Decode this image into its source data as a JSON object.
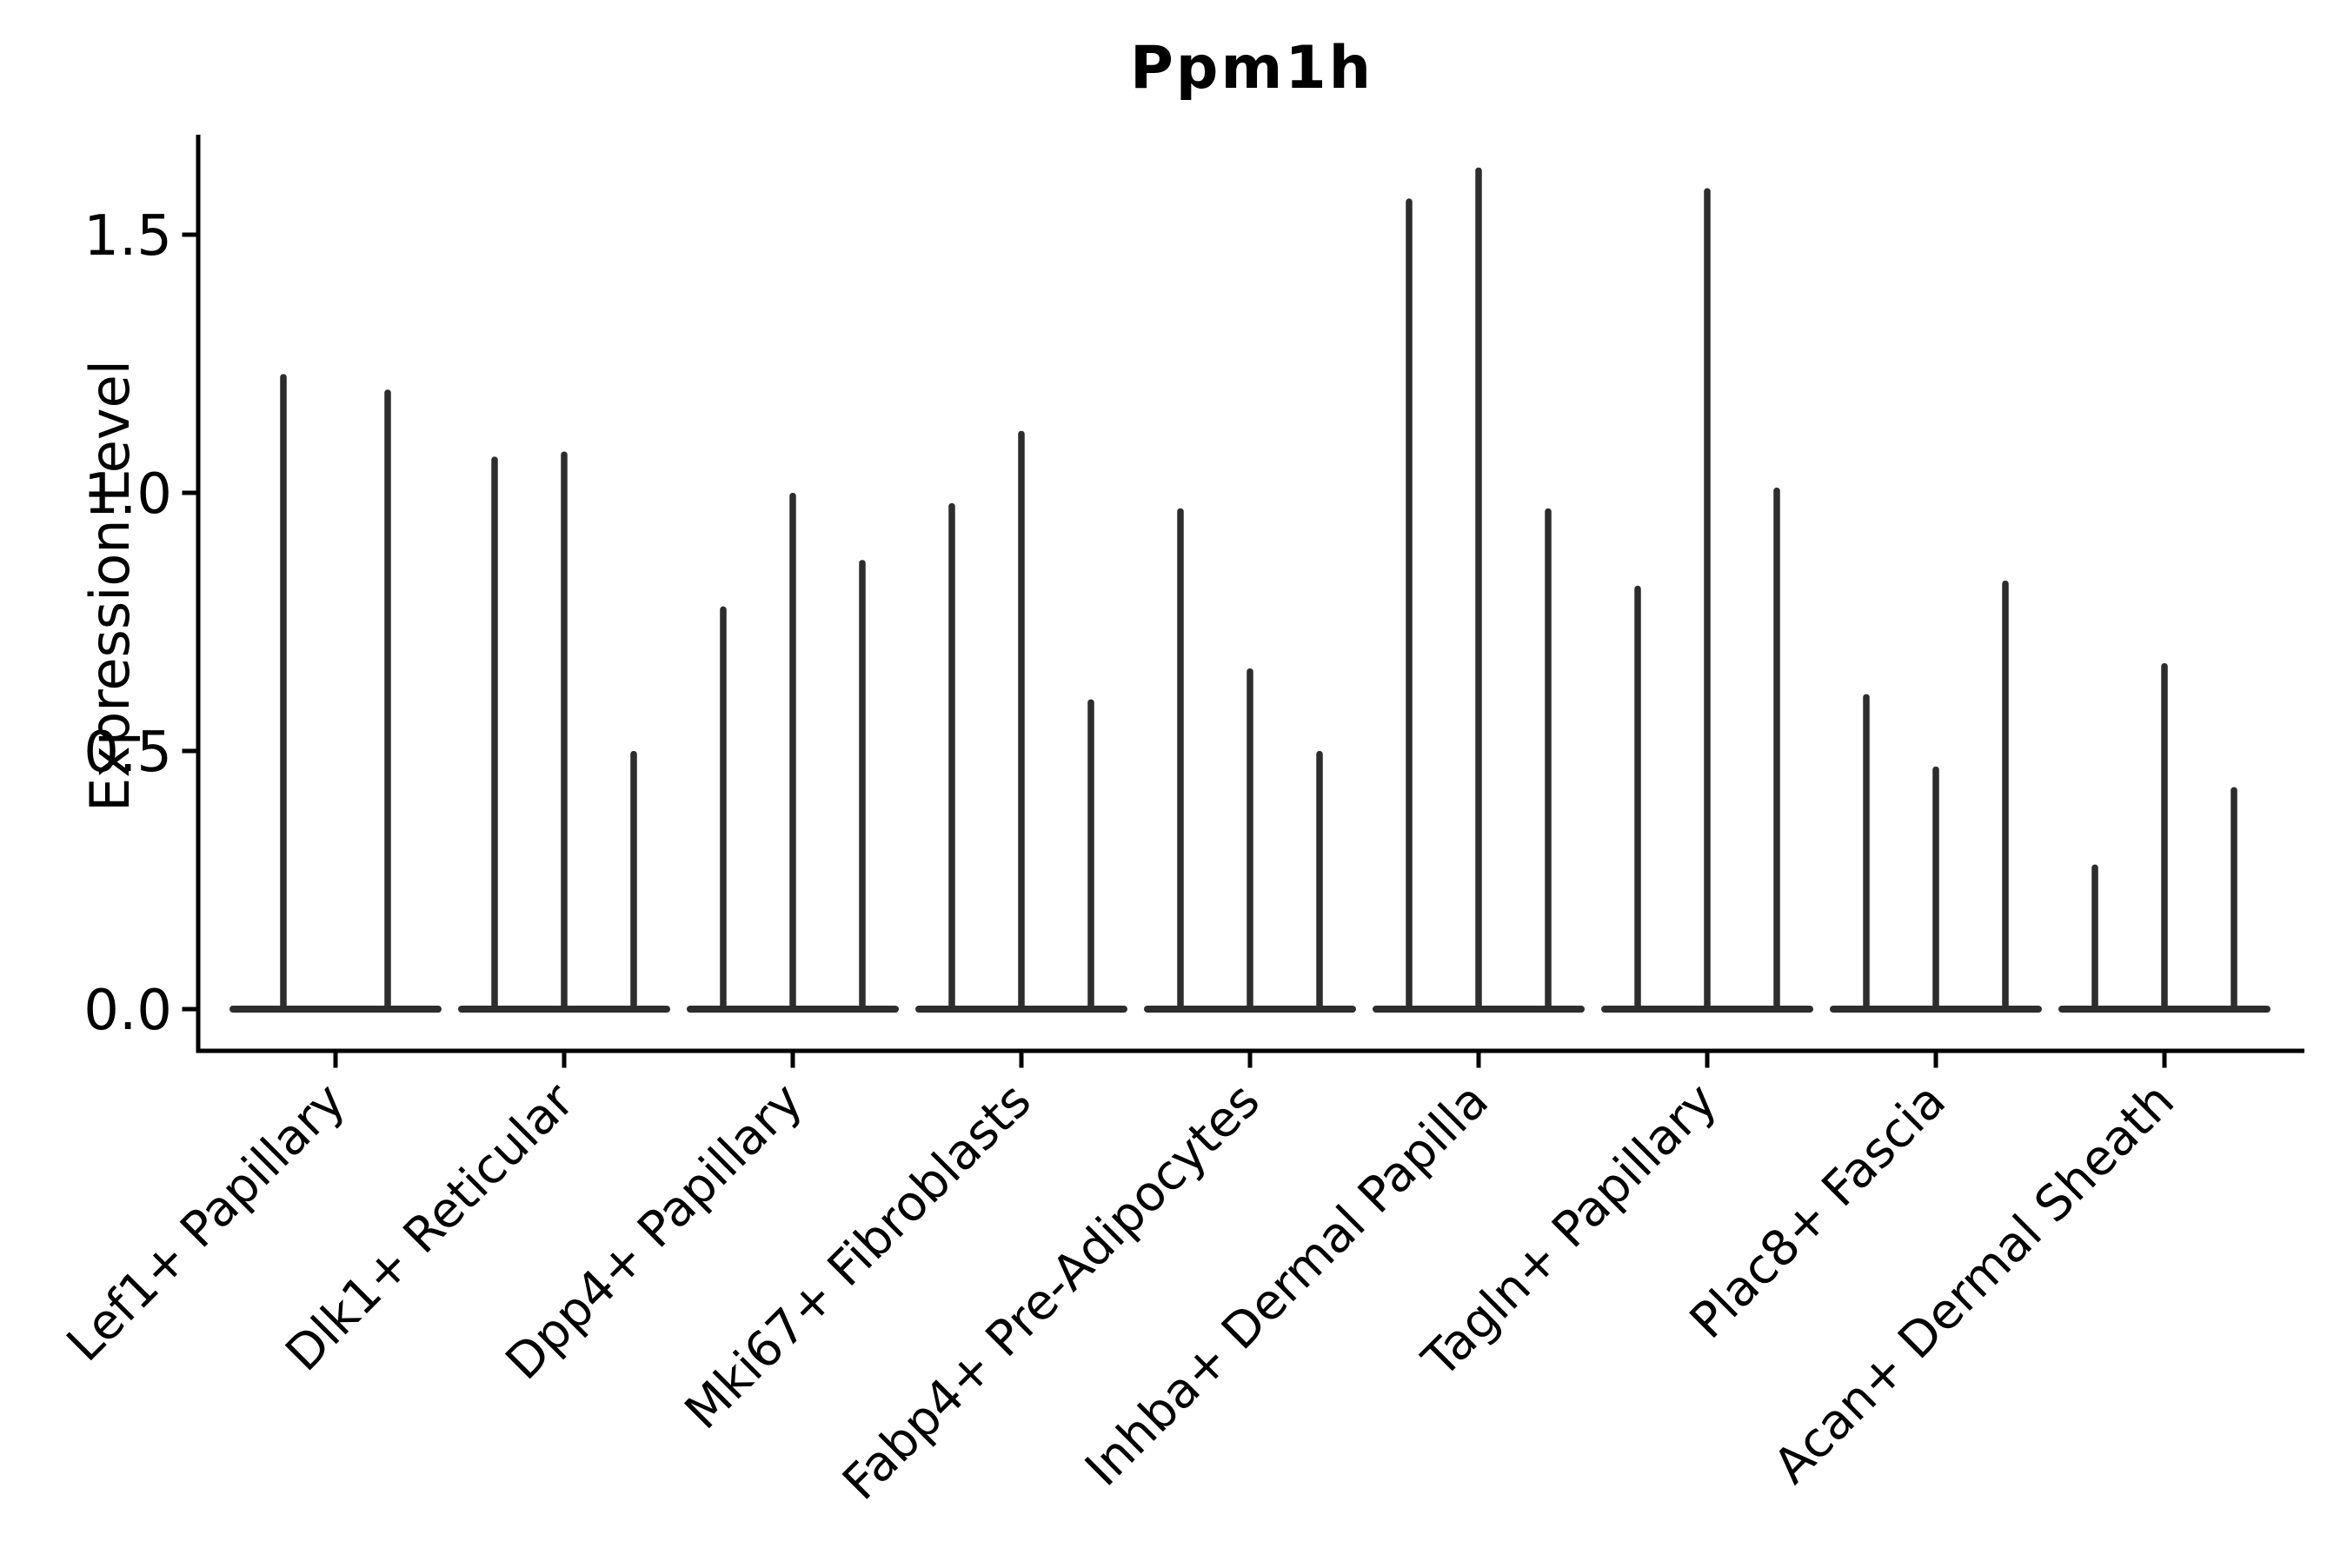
{
  "figure": {
    "title": "Ppm1h",
    "ylabel": "Expression Level"
  },
  "chart_data": {
    "type": "violin",
    "title": "Ppm1h",
    "xlabel": "",
    "ylabel": "Expression Level",
    "ylim": [
      -0.08,
      1.69
    ],
    "grid": false,
    "legend": "none",
    "violin_style": "very thin vertical spike violins with wide flat base at expression 0",
    "violin_color": "#2d2d2d",
    "axis_color": "#000000",
    "background_color": "#ffffff",
    "yticks": [
      {
        "value": 0.0,
        "label": "0.0"
      },
      {
        "value": 0.5,
        "label": "0.5"
      },
      {
        "value": 1.0,
        "label": "1.0"
      },
      {
        "value": 1.5,
        "label": "1.5"
      }
    ],
    "xtick_rotation_deg": 45,
    "categories": [
      {
        "label": "Lef1+ Papillary",
        "violin_peaks": [
          1.23,
          1.2
        ]
      },
      {
        "label": "Dlk1+ Reticular",
        "violin_peaks": [
          1.07,
          1.08,
          0.5
        ]
      },
      {
        "label": "Dpp4+ Papillary",
        "violin_peaks": [
          0.78,
          1.0,
          0.87
        ]
      },
      {
        "label": "Mki67+ Fibroblasts",
        "violin_peaks": [
          0.98,
          1.12,
          0.6
        ]
      },
      {
        "label": "Fabp4+ Pre-Adipocytes",
        "violin_peaks": [
          0.97,
          0.66,
          0.5
        ]
      },
      {
        "label": "Inhba+ Dermal Papilla",
        "violin_peaks": [
          1.57,
          1.63,
          0.97
        ]
      },
      {
        "label": "Tagln+ Papillary",
        "violin_peaks": [
          0.82,
          1.59,
          1.01
        ]
      },
      {
        "label": "Plac8+ Fascia",
        "violin_peaks": [
          0.61,
          0.47,
          0.83
        ]
      },
      {
        "label": "Acan+ Dermal Sheath",
        "violin_peaks": [
          0.28,
          0.67,
          0.43
        ]
      }
    ]
  }
}
